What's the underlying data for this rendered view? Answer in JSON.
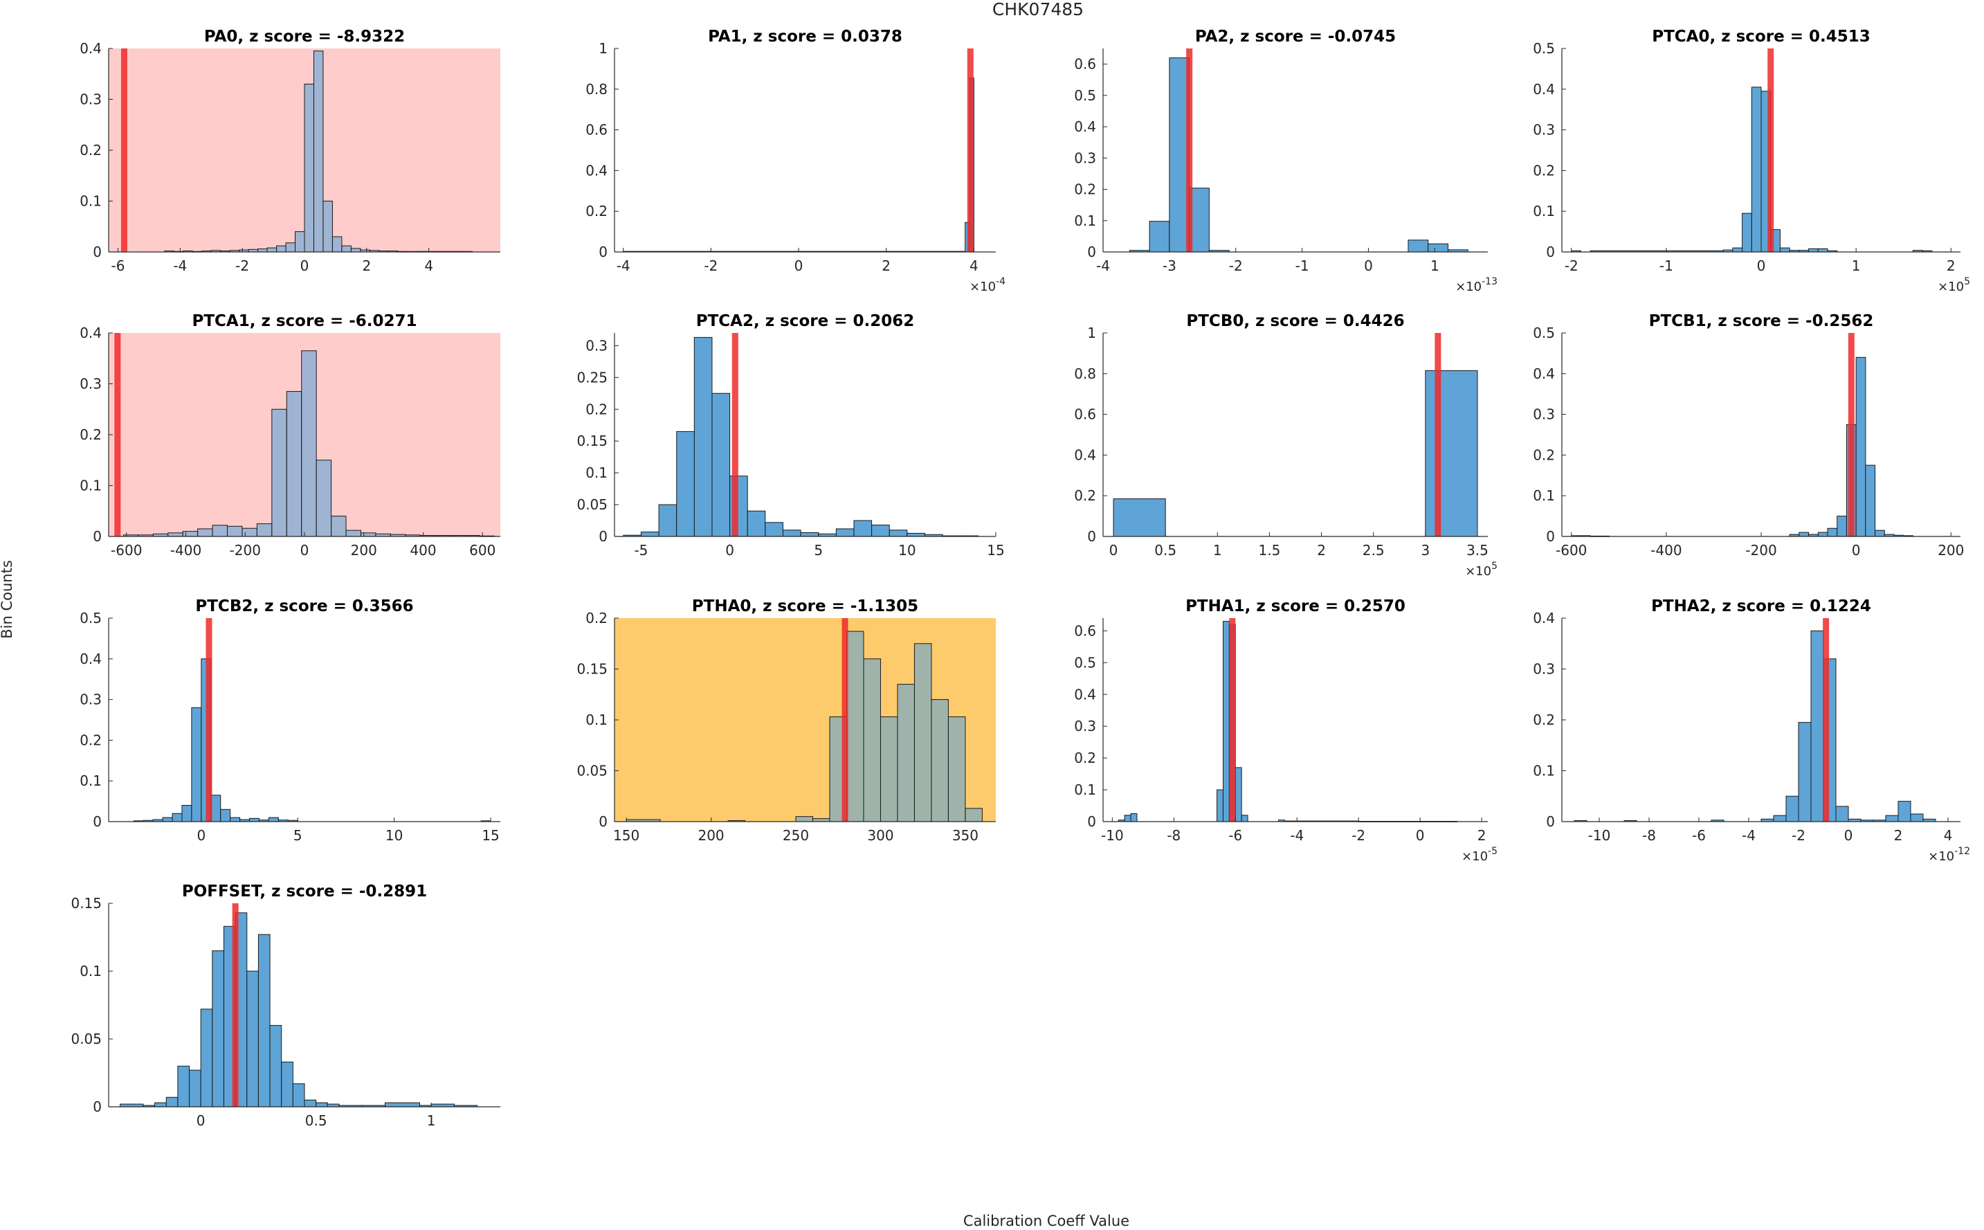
{
  "figure_title": "CHK07485",
  "xlabel": "Calibration Coeff Value",
  "ylabel": "Bin Counts",
  "colors": {
    "bar": "#5fa4d6",
    "bar_edge": "#1a1a1a",
    "marker": "#ee2a2a",
    "highlight_red": "#ffcccc",
    "highlight_orange": "#fecb6c",
    "axis": "#262626"
  },
  "chart_data": [
    {
      "title": "PA0, z score = -8.9322",
      "type": "bar",
      "highlight": "red",
      "xlim": [
        -6.3,
        6.3
      ],
      "ylim": [
        0,
        0.4
      ],
      "xticks": [
        -6,
        -4,
        -2,
        0,
        2,
        4
      ],
      "yticks": [
        0,
        0.1,
        0.2,
        0.3,
        0.4
      ],
      "bin_edges": [
        -6.3,
        -6.0,
        -5.7,
        -5.4,
        -5.1,
        -4.8,
        -4.5,
        -4.2,
        -3.9,
        -3.6,
        -3.3,
        -3.0,
        -2.7,
        -2.4,
        -2.1,
        -1.8,
        -1.5,
        -1.2,
        -0.9,
        -0.6,
        -0.3,
        0.0,
        0.3,
        0.6,
        0.9,
        1.2,
        1.5,
        1.8,
        2.1,
        2.4,
        2.7,
        3.0,
        3.3,
        3.6,
        3.9,
        4.2,
        4.5,
        4.8,
        5.1,
        5.4
      ],
      "values": [
        0,
        0,
        0,
        0,
        0,
        0,
        0.002,
        0.001,
        0.002,
        0.001,
        0.002,
        0.003,
        0.002,
        0.003,
        0.004,
        0.005,
        0.006,
        0.008,
        0.012,
        0.018,
        0.04,
        0.33,
        0.395,
        0.1,
        0.03,
        0.012,
        0.007,
        0.004,
        0.003,
        0.002,
        0.002,
        0.001,
        0.001,
        0.001,
        0.001,
        0.001,
        0.001,
        0.001,
        0.001
      ],
      "marker": -5.8
    },
    {
      "title": "PA1, z score = 0.0378",
      "type": "bar",
      "highlight": "none",
      "xlim": [
        -4.2,
        4.5
      ],
      "ylim": [
        0,
        1
      ],
      "xticks": [
        -4,
        -2,
        0,
        2,
        4
      ],
      "yticks": [
        0,
        0.2,
        0.4,
        0.6,
        0.8,
        1
      ],
      "x_exponent": "-4",
      "bin_edges": [
        -4.0,
        3.8,
        3.9,
        4.0
      ],
      "values": [
        0.003,
        0.145,
        0.855
      ],
      "marker": 3.92
    },
    {
      "title": "PA2, z score = -0.0745",
      "type": "bar",
      "highlight": "none",
      "xlim": [
        -4.0,
        1.8
      ],
      "ylim": [
        0,
        0.65
      ],
      "xticks": [
        -4,
        -3,
        -2,
        -1,
        0,
        1
      ],
      "yticks": [
        0,
        0.1,
        0.2,
        0.3,
        0.4,
        0.5,
        0.6
      ],
      "x_exponent": "-13",
      "bin_edges": [
        -3.6,
        -3.3,
        -3.0,
        -2.7,
        -2.4,
        -2.1,
        0.6,
        0.9,
        1.2,
        1.5
      ],
      "values": [
        0.005,
        0.098,
        0.62,
        0.204,
        0.005,
        0,
        0.038,
        0.026,
        0.007
      ],
      "marker": -2.7
    },
    {
      "title": "PTCA0, z score = 0.4513",
      "type": "bar",
      "highlight": "none",
      "xlim": [
        -2.1,
        2.1
      ],
      "ylim": [
        0,
        0.5
      ],
      "xticks": [
        -2,
        -1,
        0,
        1,
        2
      ],
      "yticks": [
        0,
        0.1,
        0.2,
        0.3,
        0.4,
        0.5
      ],
      "x_exponent": "5",
      "bin_edges": [
        -2.0,
        -1.9,
        -1.8,
        -0.4,
        -0.3,
        -0.2,
        -0.1,
        0.0,
        0.1,
        0.2,
        0.3,
        0.4,
        0.5,
        0.6,
        0.7,
        0.8,
        1.6,
        1.7,
        1.8
      ],
      "values": [
        0.003,
        0,
        0.003,
        0.005,
        0.01,
        0.095,
        0.405,
        0.395,
        0.055,
        0.01,
        0.004,
        0.004,
        0.008,
        0.008,
        0.003,
        0,
        0.004,
        0.003
      ],
      "marker": 0.1
    },
    {
      "title": "PTCA1, z score = -6.0271",
      "type": "bar",
      "highlight": "red",
      "xlim": [
        -660,
        660
      ],
      "ylim": [
        0,
        0.4
      ],
      "xticks": [
        -600,
        -400,
        -200,
        0,
        200,
        400,
        600
      ],
      "yticks": [
        0,
        0.1,
        0.2,
        0.3,
        0.4
      ],
      "bin_edges": [
        -660,
        -610,
        -560,
        -510,
        -460,
        -410,
        -360,
        -310,
        -260,
        -210,
        -160,
        -110,
        -60,
        -10,
        40,
        90,
        140,
        190,
        240,
        290,
        340,
        390,
        440,
        490,
        540,
        590,
        640
      ],
      "values": [
        0,
        0.003,
        0.003,
        0.005,
        0.007,
        0.01,
        0.015,
        0.022,
        0.02,
        0.016,
        0.025,
        0.25,
        0.285,
        0.365,
        0.15,
        0.04,
        0.012,
        0.007,
        0.005,
        0.004,
        0.003,
        0.002,
        0.002,
        0.002,
        0.002,
        0.001
      ],
      "marker": -630
    },
    {
      "title": "PTCA2, z score = 0.2062",
      "type": "bar",
      "highlight": "none",
      "xlim": [
        -6.5,
        15
      ],
      "ylim": [
        0,
        0.32
      ],
      "xticks": [
        -5,
        0,
        5,
        10,
        15
      ],
      "yticks": [
        0,
        0.05,
        0.1,
        0.15,
        0.2,
        0.25,
        0.3
      ],
      "bin_edges": [
        -6,
        -5,
        -4,
        -3,
        -2,
        -1,
        0,
        1,
        2,
        3,
        4,
        5,
        6,
        7,
        8,
        9,
        10,
        11,
        12,
        13,
        14
      ],
      "values": [
        0.002,
        0.007,
        0.05,
        0.165,
        0.313,
        0.225,
        0.095,
        0.04,
        0.022,
        0.01,
        0.006,
        0.004,
        0.012,
        0.025,
        0.018,
        0.01,
        0.005,
        0.003,
        0.001,
        0.001
      ],
      "marker": 0.3
    },
    {
      "title": "PTCB0, z score = 0.4426",
      "type": "bar",
      "highlight": "none",
      "xlim": [
        -0.1,
        3.6
      ],
      "ylim": [
        0,
        1
      ],
      "xticks": [
        0,
        0.5,
        1,
        1.5,
        2,
        2.5,
        3,
        3.5
      ],
      "yticks": [
        0,
        0.2,
        0.4,
        0.6,
        0.8,
        1
      ],
      "x_exponent": "5",
      "bin_edges": [
        0,
        0.5,
        3.0,
        3.5
      ],
      "values": [
        0.185,
        0,
        0.815
      ],
      "marker": 3.12
    },
    {
      "title": "PTCB1, z score = -0.2562",
      "type": "bar",
      "highlight": "none",
      "xlim": [
        -620,
        220
      ],
      "ylim": [
        0,
        0.5
      ],
      "xticks": [
        -600,
        -400,
        -200,
        0,
        200
      ],
      "yticks": [
        0,
        0.1,
        0.2,
        0.3,
        0.4,
        0.5
      ],
      "bin_edges": [
        -600,
        -580,
        -560,
        -540,
        -520,
        -140,
        -120,
        -100,
        -80,
        -60,
        -40,
        -20,
        0,
        20,
        40,
        60,
        80,
        100,
        120
      ],
      "values": [
        0.002,
        0.002,
        0.001,
        0.001,
        0,
        0.005,
        0.01,
        0.005,
        0.01,
        0.02,
        0.05,
        0.275,
        0.44,
        0.175,
        0.015,
        0.005,
        0.003,
        0.002
      ],
      "marker": -10
    },
    {
      "title": "PTCB2, z score = 0.3566",
      "type": "bar",
      "highlight": "none",
      "xlim": [
        -4.8,
        15.5
      ],
      "ylim": [
        0,
        0.5
      ],
      "xticks": [
        0,
        5,
        10,
        15
      ],
      "yticks": [
        0,
        0.1,
        0.2,
        0.3,
        0.4,
        0.5
      ],
      "bin_edges": [
        -3.5,
        -3.0,
        -2.5,
        -2.0,
        -1.5,
        -1.0,
        -0.5,
        0.0,
        0.5,
        1.0,
        1.5,
        2.0,
        2.5,
        3.0,
        3.5,
        4.0,
        4.5,
        5.0,
        14.5,
        15.0
      ],
      "values": [
        0.002,
        0.003,
        0.005,
        0.01,
        0.02,
        0.04,
        0.28,
        0.4,
        0.065,
        0.03,
        0.01,
        0.005,
        0.008,
        0.004,
        0.01,
        0.004,
        0.003,
        0,
        0.002
      ],
      "marker": 0.4
    },
    {
      "title": "PTHA0, z score = -1.1305",
      "type": "bar",
      "highlight": "orange",
      "xlim": [
        143,
        368
      ],
      "ylim": [
        0,
        0.2
      ],
      "xticks": [
        150,
        200,
        250,
        300,
        350
      ],
      "yticks": [
        0,
        0.05,
        0.1,
        0.15,
        0.2
      ],
      "bin_edges": [
        150,
        170,
        210,
        220,
        250,
        260,
        270,
        280,
        290,
        300,
        310,
        320,
        330,
        340,
        350,
        360
      ],
      "values": [
        0.002,
        0,
        0.001,
        0,
        0.005,
        0.003,
        0.103,
        0.187,
        0.16,
        0.103,
        0.135,
        0.175,
        0.12,
        0.103,
        0.013
      ],
      "marker": 279
    },
    {
      "title": "PTHA1, z score = 0.2570",
      "type": "bar",
      "highlight": "none",
      "xlim": [
        -10.3,
        2.2
      ],
      "ylim": [
        0,
        0.64
      ],
      "xticks": [
        -10,
        -8,
        -6,
        -4,
        -2,
        0,
        2
      ],
      "yticks": [
        0,
        0.1,
        0.2,
        0.3,
        0.4,
        0.5,
        0.6
      ],
      "x_exponent": "-5",
      "bin_edges": [
        -9.8,
        -9.6,
        -9.4,
        -9.2,
        -9.0,
        -8.8,
        -6.6,
        -6.4,
        -6.2,
        -6.0,
        -5.8,
        -5.6,
        -4.6,
        -4.4,
        -4.2,
        -2.0,
        0.0,
        1.0,
        1.2
      ],
      "values": [
        0.005,
        0.02,
        0.025,
        0,
        0,
        0,
        0.1,
        0.63,
        0.62,
        0.17,
        0.02,
        0,
        0.005,
        0.002,
        0.002,
        0.001,
        0.001,
        0.001
      ],
      "marker": -6.1
    },
    {
      "title": "PTHA2, z score = 0.1224",
      "type": "bar",
      "highlight": "none",
      "xlim": [
        -11.5,
        4.5
      ],
      "ylim": [
        0,
        0.4
      ],
      "xticks": [
        -10,
        -8,
        -6,
        -4,
        -2,
        0,
        2,
        4
      ],
      "yticks": [
        0,
        0.1,
        0.2,
        0.3,
        0.4
      ],
      "x_exponent": "-12",
      "bin_edges": [
        -11,
        -10.5,
        -9.0,
        -8.5,
        -5.5,
        -5.0,
        -3.5,
        -3.0,
        -2.5,
        -2.0,
        -1.5,
        -1.0,
        -0.5,
        0.0,
        0.5,
        1.0,
        1.5,
        2.0,
        2.5,
        3.0,
        3.5
      ],
      "values": [
        0.002,
        0,
        0.002,
        0,
        0.003,
        0,
        0.005,
        0.012,
        0.05,
        0.195,
        0.375,
        0.32,
        0.03,
        0.005,
        0.003,
        0.003,
        0.012,
        0.04,
        0.015,
        0.005
      ],
      "marker": -0.9
    },
    {
      "title": "POFFSET, z score = -0.2891",
      "type": "bar",
      "highlight": "none",
      "xlim": [
        -0.4,
        1.3
      ],
      "ylim": [
        0,
        0.15
      ],
      "xticks": [
        0,
        0.5,
        1
      ],
      "yticks": [
        0,
        0.05,
        0.1,
        0.15
      ],
      "bin_edges": [
        -0.35,
        -0.25,
        -0.2,
        -0.15,
        -0.1,
        -0.05,
        0.0,
        0.05,
        0.1,
        0.15,
        0.2,
        0.25,
        0.3,
        0.35,
        0.4,
        0.45,
        0.5,
        0.55,
        0.6,
        0.7,
        0.8,
        0.95,
        1.0,
        1.1,
        1.2
      ],
      "values": [
        0.002,
        0.001,
        0.003,
        0.007,
        0.03,
        0.027,
        0.072,
        0.115,
        0.133,
        0.143,
        0.1,
        0.127,
        0.06,
        0.033,
        0.017,
        0.005,
        0.003,
        0.002,
        0.001,
        0.001,
        0.003,
        0.001,
        0.002,
        0.001
      ],
      "marker": 0.15
    }
  ]
}
